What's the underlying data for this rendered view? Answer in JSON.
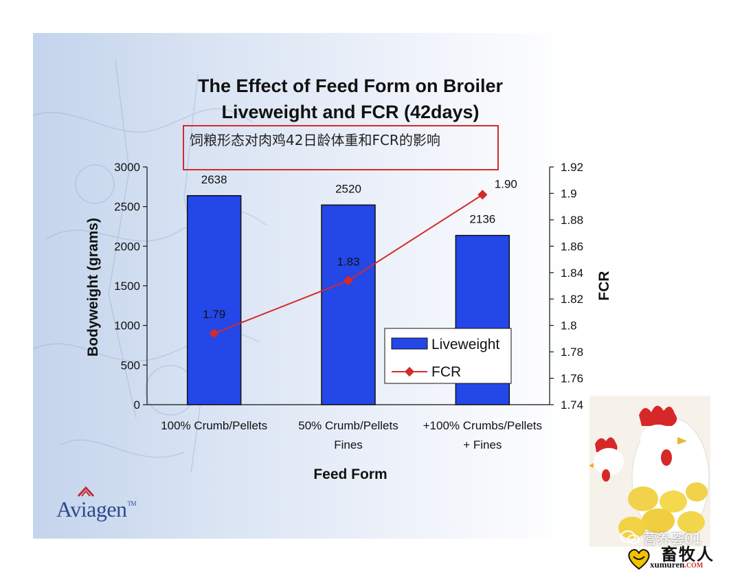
{
  "chart_data": {
    "type": "bar",
    "title_lines": [
      "The Effect of Feed Form on Broiler",
      "Liveweight and FCR (42days)"
    ],
    "annotation": "饲粮形态对肉鸡42日龄体重和FCR的影响",
    "categories": [
      [
        "100% Crumb/Pellets"
      ],
      [
        "50% Crumb/Pellets",
        "Fines"
      ],
      [
        "+100% Crumbs/Pellets",
        "+ Fines"
      ]
    ],
    "series": [
      {
        "name": "Liveweight",
        "type": "bar",
        "axis": "left",
        "color": "#2447e8",
        "values": [
          2638,
          2520,
          2136
        ],
        "labels": [
          "2638",
          "2520",
          "2136"
        ]
      },
      {
        "name": "FCR",
        "type": "line",
        "axis": "right",
        "color": "#d42a2a",
        "values": [
          1.794,
          1.834,
          1.899
        ],
        "labels": [
          "1.79",
          "1.83",
          "1.90"
        ]
      }
    ],
    "xlabel": "Feed Form",
    "ylabel": "Bodyweight (grams)",
    "y2label": "FCR",
    "ylim": [
      0,
      3000
    ],
    "yticks": [
      "0",
      "500",
      "1000",
      "1500",
      "2000",
      "2500",
      "3000"
    ],
    "y2lim": [
      1.74,
      1.92
    ],
    "y2ticks": [
      "1.74",
      "1.76",
      "1.78",
      "1.8",
      "1.82",
      "1.84",
      "1.86",
      "1.88",
      "1.9",
      "1.92"
    ],
    "legend": {
      "placement": "bottom-right",
      "entries": [
        "Liveweight",
        "FCR"
      ]
    },
    "grid": false
  },
  "branding": {
    "logo": "Aviagen",
    "logo_tm": "TM",
    "watermark": "营养荟01",
    "site_cn": "畜牧人",
    "site_en": "xumuren",
    "site_en_suffix": ".COM"
  },
  "colors": {
    "bar": "#2447e8",
    "fcr_line": "#d42a2a",
    "annotation_border": "#d42a2a",
    "logo": "#2d4a8a"
  }
}
